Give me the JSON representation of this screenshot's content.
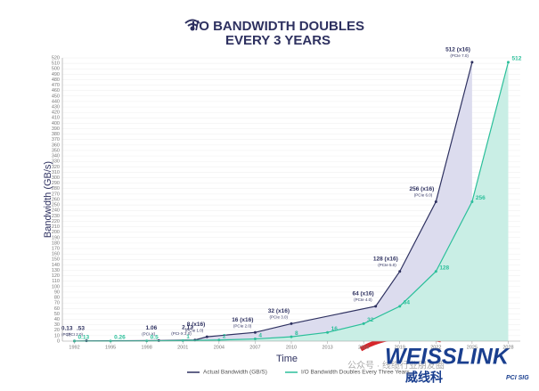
{
  "chart_data": {
    "type": "area",
    "title_lines": [
      "I/O BANDWIDTH DOUBLES",
      "EVERY 3 YEARS"
    ],
    "y_label": "Bandwidth (GB/s)",
    "x_label": "Time",
    "xlim": [
      1991,
      2029
    ],
    "xticks": [
      1992,
      1995,
      1998,
      2001,
      2004,
      2007,
      2010,
      2013,
      2016,
      2019,
      2022,
      2025,
      2028
    ],
    "ylim": [
      0,
      520
    ],
    "yticks": [
      0,
      10,
      20,
      30,
      40,
      50,
      60,
      70,
      80,
      90,
      100,
      110,
      120,
      130,
      140,
      150,
      160,
      170,
      180,
      190,
      200,
      210,
      220,
      230,
      240,
      250,
      260,
      270,
      280,
      290,
      300,
      310,
      320,
      330,
      340,
      350,
      360,
      370,
      380,
      390,
      400,
      410,
      420,
      430,
      440,
      450,
      460,
      470,
      480,
      490,
      500,
      510,
      520
    ],
    "series": [
      {
        "name": "Actual Bandwidth (GB/S)",
        "color": "#2e3160",
        "fill": "#dcdcee",
        "x": [
          1992,
          1993,
          1999,
          2002,
          2003,
          2007,
          2010,
          2017,
          2019,
          2022,
          2025
        ],
        "values": [
          0.13,
          0.53,
          1.06,
          2.13,
          8,
          16,
          32,
          64,
          128,
          256,
          512
        ],
        "value_labels": [
          "0.13",
          ".53",
          "1.06",
          "2.13",
          "8 (x16)",
          "16 (x16)",
          "32 (x16)",
          "64 (x16)",
          "128 (x16)",
          "256 (x16)",
          "512 (x16)"
        ],
        "notes": [
          "(PCI)",
          "(PCI 2.0)",
          "(PCI-X)",
          "(PCI-X 2.0)",
          "(PCIe 1.0)",
          "(PCIe 2.0)",
          "(PCIe 3.0)",
          "(PCIe 4.0)",
          "(PCIe 5.0)",
          "(PCIe 6.0)",
          "(PCIe 7.0)"
        ]
      },
      {
        "name": "I/O Bandwidth Doubles Every Three Years",
        "color": "#2bbf9a",
        "fill": "#c9eee5",
        "x": [
          1992,
          1995,
          1998,
          2001,
          2004,
          2007,
          2010,
          2013,
          2016,
          2019,
          2022,
          2025,
          2028
        ],
        "values": [
          0.13,
          0.26,
          0.5,
          1,
          2,
          4,
          8,
          16,
          32,
          64,
          128,
          256,
          512
        ]
      }
    ],
    "watermark": "公众号 · 线缆行业朋友圈",
    "logo": "WEISSLINK",
    "logo_sub": "威线科",
    "logo_badge": "PCI SIG"
  }
}
